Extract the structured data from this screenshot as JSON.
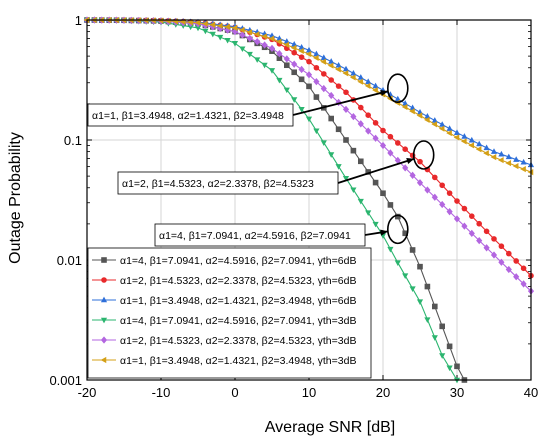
{
  "chart_data": {
    "type": "line",
    "xlabel": "Average SNR [dB]",
    "ylabel": "Outage Probability",
    "xlim": [
      -20,
      40
    ],
    "ylim": [
      0.001,
      1
    ],
    "yscale": "log",
    "grid": true,
    "legend_placement": "bottom-left",
    "x_ticks": [
      -20,
      -10,
      0,
      10,
      20,
      30,
      40
    ],
    "y_ticks": [
      0.001,
      0.01,
      0.1,
      1
    ],
    "x_tick_labels": [
      "-20",
      "-10",
      "0",
      "10",
      "20",
      "30",
      "40"
    ],
    "y_tick_labels": [
      "0.001",
      "0.01",
      "0.1",
      "1"
    ],
    "series": [
      {
        "name": "α1=4, β1=7.0941, α2=4.5916, β2=7.0941, γth=6dB",
        "color": "#555555",
        "marker": "square",
        "x": [
          -20,
          -15,
          -10,
          -5,
          0,
          5,
          10,
          15,
          20,
          22,
          25,
          28,
          30,
          31
        ],
        "y": [
          1.0,
          0.995,
          0.98,
          0.93,
          0.8,
          0.55,
          0.28,
          0.1,
          0.036,
          0.023,
          0.0088,
          0.0028,
          0.0013,
          0.001
        ]
      },
      {
        "name": "α1=2, β1=4.5323, α2=2.3378, β2=4.5323,  γth=6dB",
        "color": "#e8292b",
        "marker": "circle",
        "x": [
          -20,
          -15,
          -10,
          -5,
          0,
          5,
          10,
          15,
          20,
          25,
          30,
          35,
          40
        ],
        "y": [
          1.0,
          0.998,
          0.99,
          0.96,
          0.87,
          0.69,
          0.45,
          0.25,
          0.12,
          0.066,
          0.031,
          0.015,
          0.0074
        ]
      },
      {
        "name": "α1=1, β1=3.4948, α2=1.4321, β2=3.4948, γth=6dB",
        "color": "#2e6fd9",
        "marker": "triangle-up",
        "x": [
          -20,
          -15,
          -10,
          -5,
          0,
          5,
          10,
          15,
          20,
          25,
          30,
          35,
          40
        ],
        "y": [
          1.0,
          0.998,
          0.99,
          0.96,
          0.88,
          0.74,
          0.56,
          0.39,
          0.26,
          0.17,
          0.115,
          0.08,
          0.062
        ]
      },
      {
        "name": "α1=4, β1=7.0941, α2=4.5916, β2=7.0941, γth=3dB",
        "color": "#2bb56f",
        "marker": "triangle-down",
        "x": [
          -20,
          -15,
          -10,
          -5,
          0,
          5,
          10,
          15,
          20,
          22,
          25,
          28,
          30
        ],
        "y": [
          1.0,
          0.99,
          0.96,
          0.86,
          0.64,
          0.38,
          0.15,
          0.048,
          0.016,
          0.0095,
          0.0045,
          0.0016,
          0.001
        ]
      },
      {
        "name": "α1=2, β1=4.5323, α2=2.3378, β2=4.5323, γth=3dB",
        "color": "#b366e0",
        "marker": "diamond",
        "x": [
          -20,
          -15,
          -10,
          -5,
          0,
          5,
          10,
          15,
          20,
          25,
          30,
          35,
          40
        ],
        "y": [
          1.0,
          0.996,
          0.98,
          0.93,
          0.8,
          0.58,
          0.35,
          0.18,
          0.09,
          0.044,
          0.022,
          0.011,
          0.0055
        ]
      },
      {
        "name": "α1=1, β1=3.4948, α2=1.4321, β2=3.4948, γth=3dB",
        "color": "#d4a017",
        "marker": "triangle-left",
        "x": [
          -20,
          -15,
          -10,
          -5,
          0,
          5,
          10,
          15,
          20,
          25,
          30,
          35,
          40
        ],
        "y": [
          1.0,
          0.997,
          0.99,
          0.95,
          0.86,
          0.7,
          0.52,
          0.36,
          0.24,
          0.16,
          0.105,
          0.072,
          0.054
        ]
      }
    ],
    "annotations": [
      {
        "text": "α1=1, β1=3.4948, α2=1.4321, β2=3.4948",
        "target_x": 22,
        "target_y": 0.27
      },
      {
        "text": "α1=2, β1=4.5323, α2=2.3378, β2=4.5323",
        "target_x": 25.5,
        "target_y": 0.075
      },
      {
        "text": "α1=4, β1=7.0941, α2=4.5916, β2=7.0941",
        "target_x": 22,
        "target_y": 0.018
      }
    ]
  }
}
